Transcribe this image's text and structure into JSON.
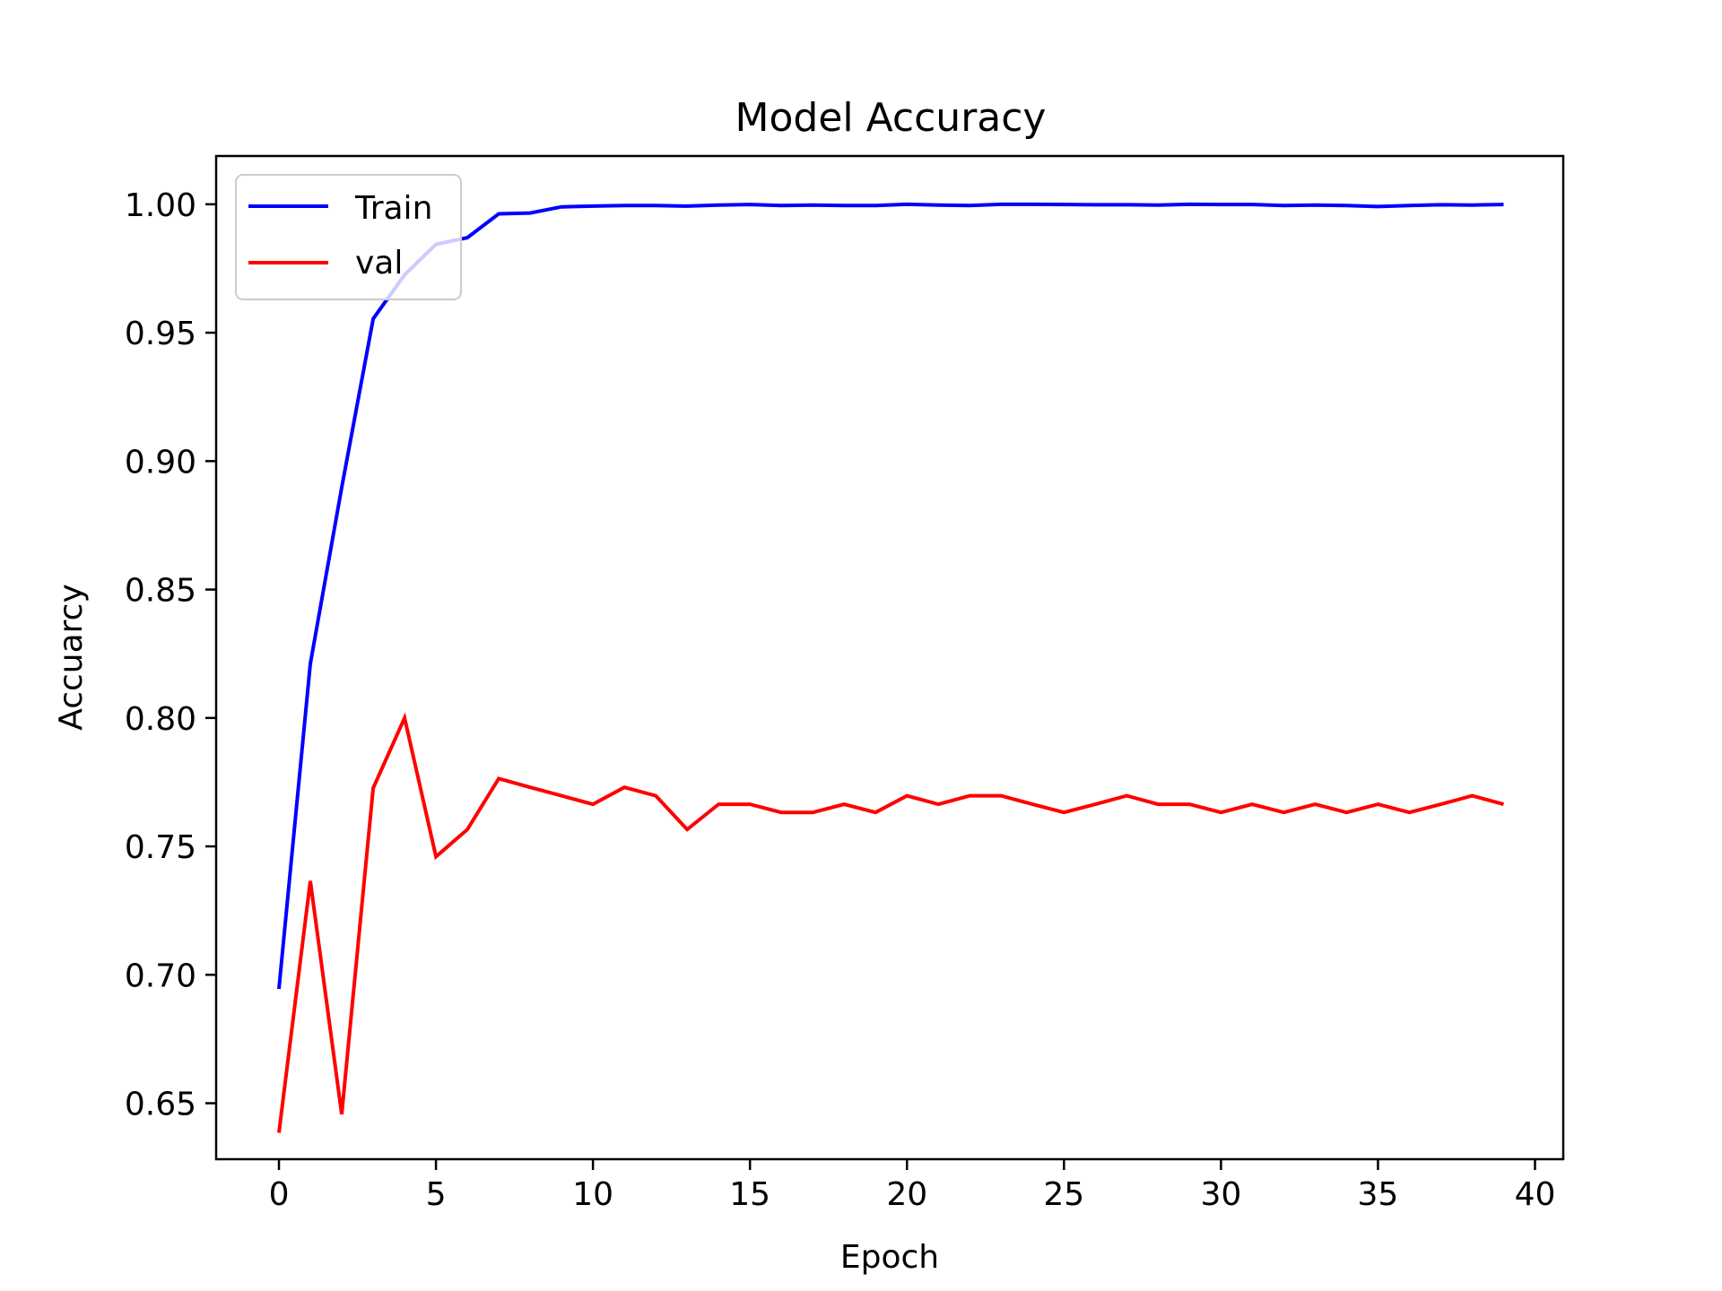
{
  "chart_data": {
    "type": "line",
    "title": "Model Accuracy",
    "xlabel": "Epoch",
    "ylabel": "Accuarcy",
    "xlim": [
      -2,
      40.9
    ],
    "ylim": [
      0.6282,
      1.0188
    ],
    "xticks": [
      0,
      5,
      10,
      15,
      20,
      25,
      30,
      35,
      40
    ],
    "xtick_labels": [
      "0",
      "5",
      "10",
      "15",
      "20",
      "25",
      "30",
      "35",
      "40"
    ],
    "yticks": [
      0.65,
      0.7,
      0.75,
      0.8,
      0.85,
      0.9,
      0.95,
      1.0
    ],
    "ytick_labels": [
      "0.65",
      "0.70",
      "0.75",
      "0.80",
      "0.85",
      "0.90",
      "0.95",
      "1.00"
    ],
    "grid": false,
    "legend_position": "upper left",
    "x": [
      0,
      1,
      2,
      3,
      4,
      5,
      6,
      7,
      8,
      9,
      10,
      11,
      12,
      13,
      14,
      15,
      16,
      17,
      18,
      19,
      20,
      21,
      22,
      23,
      24,
      25,
      26,
      27,
      28,
      29,
      30,
      31,
      32,
      33,
      34,
      35,
      36,
      37,
      38,
      39
    ],
    "series": [
      {
        "name": "Train",
        "color": "#0000ff",
        "values": [
          0.6945,
          0.8211,
          0.8897,
          0.9554,
          0.9725,
          0.9844,
          0.987,
          0.9963,
          0.9966,
          0.999,
          0.9993,
          0.9995,
          0.9995,
          0.9993,
          0.9997,
          0.9999,
          0.9995,
          0.9997,
          0.9995,
          0.9995,
          1.0,
          0.9997,
          0.9995,
          1.0,
          1.0,
          0.9999,
          0.9998,
          0.9998,
          0.9997,
          1.0,
          0.9999,
          0.9999,
          0.9995,
          0.9997,
          0.9995,
          0.9991,
          0.9995,
          0.9998,
          0.9997,
          0.9999
        ]
      },
      {
        "name": "val",
        "color": "#ff0000",
        "values": [
          0.6385,
          0.7365,
          0.6457,
          0.7727,
          0.8,
          0.746,
          0.7566,
          0.7764,
          0.773,
          0.7697,
          0.7664,
          0.773,
          0.7697,
          0.7566,
          0.7664,
          0.7664,
          0.7632,
          0.7632,
          0.7664,
          0.7632,
          0.7697,
          0.7664,
          0.7697,
          0.7697,
          0.7664,
          0.7632,
          0.7664,
          0.7697,
          0.7664,
          0.7664,
          0.7632,
          0.7664,
          0.7632,
          0.7664,
          0.7632,
          0.7664,
          0.7632,
          0.7664,
          0.7697,
          0.7664
        ]
      }
    ]
  }
}
